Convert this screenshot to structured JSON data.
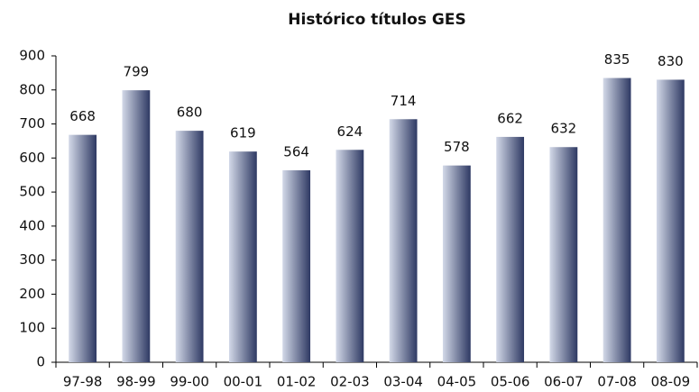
{
  "chart_data": {
    "type": "bar",
    "title": "Histórico títulos GES",
    "categories": [
      "97-98",
      "98-99",
      "99-00",
      "00-01",
      "01-02",
      "02-03",
      "03-04",
      "04-05",
      "05-06",
      "06-07",
      "07-08",
      "08-09"
    ],
    "values": [
      668,
      799,
      680,
      619,
      564,
      624,
      714,
      578,
      662,
      632,
      835,
      830
    ],
    "color": "#2e3963",
    "ylim": [
      0,
      900
    ],
    "yticks": [
      0,
      100,
      200,
      300,
      400,
      500,
      600,
      700,
      800,
      900
    ],
    "grid": false
  }
}
